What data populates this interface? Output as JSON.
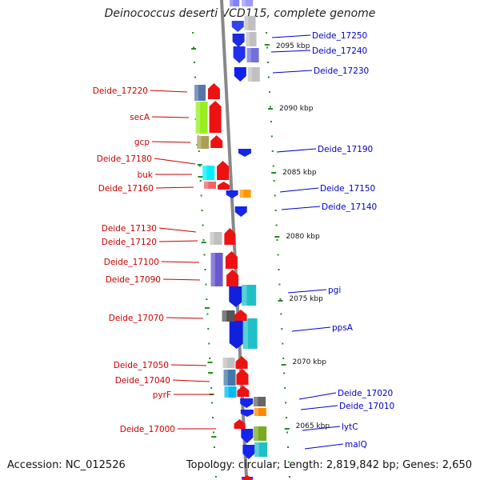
{
  "title": "Deinococcus deserti VCD115, complete genome",
  "footer": {
    "accession": "Accession: NC_012526",
    "summary": "Topology: circular; Length: 2,819,842 bp; Genes: 2,650"
  },
  "colors": {
    "left_labels": "#cc0000",
    "right_labels": "#0000cc",
    "backbone": "#888888",
    "ticks": "#228b22"
  },
  "scale_labels": [
    "2095 kbp",
    "2090 kbp",
    "2085 kbp",
    "2080 kbp",
    "2075 kbp",
    "2070 kbp",
    "2065 kbp"
  ],
  "left_genes": [
    "Deide_17220",
    "secA",
    "gcp",
    "Deide_17180",
    "buk",
    "Deide_17160",
    "Deide_17130",
    "Deide_17120",
    "Deide_17100",
    "Deide_17090",
    "Deide_17070",
    "Deide_17050",
    "Deide_17040",
    "pyrF",
    "Deide_17000"
  ],
  "right_genes": [
    "Deide_17250",
    "Deide_17240",
    "Deide_17230",
    "Deide_17190",
    "Deide_17150",
    "Deide_17140",
    "pgi",
    "ppsA",
    "Deide_17020",
    "Deide_17010",
    "lytC",
    "malQ"
  ]
}
